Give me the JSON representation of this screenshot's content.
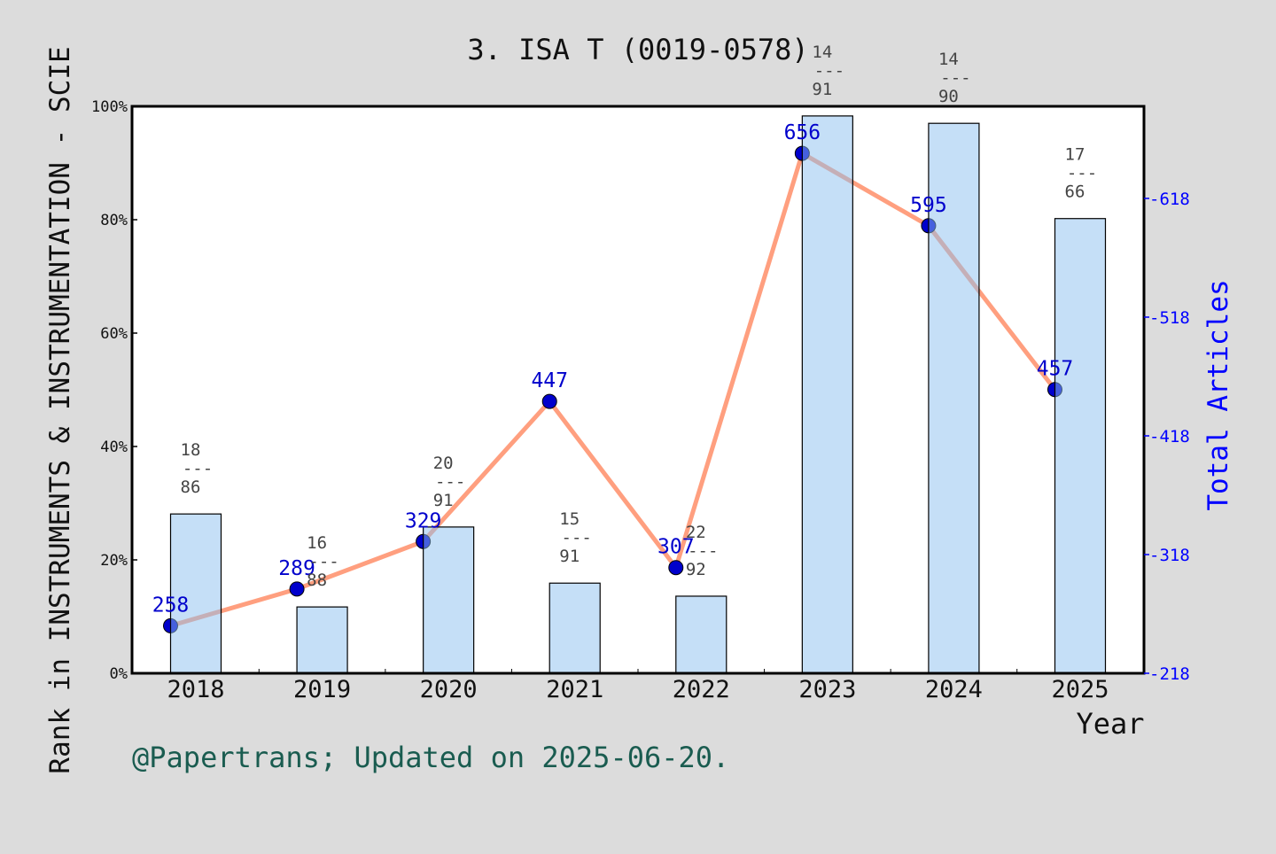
{
  "chart_data": {
    "type": "bar+line",
    "title": "3. ISA T (0019-0578)",
    "xlabel": "Year",
    "ylabel_left": "Rank in INSTRUMENTS & INSTRUMENTATION - SCIE",
    "ylabel_right": "Total Articles",
    "categories": [
      "2018",
      "2019",
      "2020",
      "2021",
      "2022",
      "2023",
      "2024",
      "2025"
    ],
    "bar_values_percent": [
      28.1,
      11.7,
      25.8,
      15.9,
      13.6,
      98.3,
      97.0,
      80.2
    ],
    "rank_labels": [
      {
        "rank": "18",
        "total": "86"
      },
      {
        "rank": "16",
        "total": "88"
      },
      {
        "rank": "20",
        "total": "91"
      },
      {
        "rank": "15",
        "total": "91"
      },
      {
        "rank": "22",
        "total": "92"
      },
      {
        "rank": "14",
        "total": "91"
      },
      {
        "rank": "14",
        "total": "90"
      },
      {
        "rank": "17",
        "total": "66"
      }
    ],
    "fraction_bar": "---",
    "articles": [
      258,
      289,
      329,
      447,
      307,
      656,
      595,
      457
    ],
    "ylim_left": [
      0,
      100
    ],
    "yticks_left": [
      "0%",
      "20%",
      "40%",
      "60%",
      "80%",
      "100%"
    ],
    "ylim_right": [
      218,
      695.6
    ],
    "yticks_right": [
      218,
      318,
      418,
      518,
      618
    ],
    "grid": false,
    "colors": {
      "bar": "#c5e0f7",
      "line": "#ff9f7f",
      "point": "#0000cc",
      "article_label": "#0000cc",
      "right_axis": "#0000ff",
      "footer": "#1a5c50",
      "rank_label": "#444444"
    }
  },
  "footer": "@Papertrans; Updated on 2025-06-20."
}
